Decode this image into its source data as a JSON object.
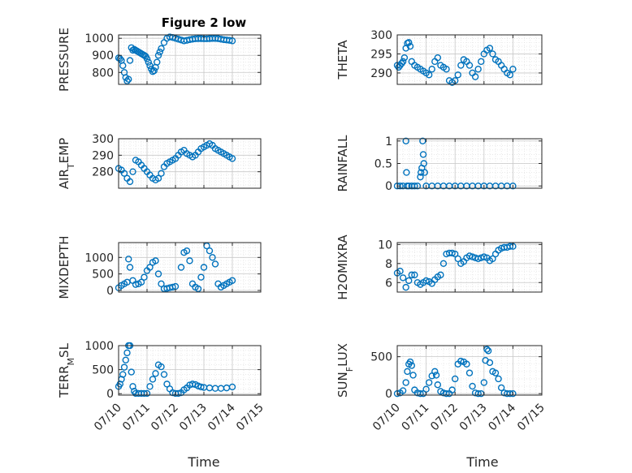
{
  "title": "Figure 2 low",
  "marker_color": "#0072BD",
  "x_tick_labels": [
    "07/10",
    "07/11",
    "07/12",
    "07/13",
    "07/14",
    "07/15"
  ],
  "x_axis_label": "Time",
  "chart_data": [
    {
      "type": "scatter",
      "title": "Figure 2 low",
      "ylabel": "PRESSURE",
      "xlim": [
        0,
        5
      ],
      "ylim": [
        730,
        1020
      ],
      "yticks": [
        800,
        900,
        1000
      ],
      "ytick_labels": [
        "800",
        "900",
        "1000"
      ],
      "grid": true,
      "x": [
        0,
        0.05,
        0.1,
        0.15,
        0.2,
        0.25,
        0.3,
        0.35,
        0.4,
        0.45,
        0.5,
        0.55,
        0.6,
        0.65,
        0.7,
        0.75,
        0.8,
        0.85,
        0.9,
        0.95,
        1,
        1.05,
        1.1,
        1.15,
        1.2,
        1.25,
        1.3,
        1.35,
        1.4,
        1.45,
        1.5,
        1.6,
        1.7,
        1.8,
        1.9,
        2,
        2.1,
        2.2,
        2.3,
        2.4,
        2.5,
        2.6,
        2.7,
        2.8,
        2.9,
        3,
        3.1,
        3.2,
        3.3,
        3.4,
        3.5,
        3.6,
        3.7,
        3.8,
        3.9,
        4
      ],
      "y": [
        885,
        880,
        870,
        840,
        800,
        770,
        750,
        760,
        870,
        945,
        930,
        935,
        930,
        925,
        920,
        915,
        910,
        905,
        900,
        895,
        880,
        860,
        840,
        820,
        805,
        810,
        830,
        860,
        900,
        920,
        940,
        975,
        1000,
        1008,
        1005,
        1000,
        995,
        990,
        985,
        988,
        992,
        995,
        997,
        998,
        998,
        997,
        997,
        998,
        999,
        999,
        998,
        995,
        992,
        990,
        988,
        985
      ]
    },
    {
      "type": "scatter",
      "ylabel": "THETA",
      "xlim": [
        0,
        5
      ],
      "ylim": [
        287,
        300
      ],
      "yticks": [
        290,
        295,
        300
      ],
      "ytick_labels": [
        "290",
        "295",
        "300"
      ],
      "grid": true,
      "x": [
        0,
        0.05,
        0.1,
        0.15,
        0.2,
        0.25,
        0.3,
        0.35,
        0.4,
        0.45,
        0.5,
        0.6,
        0.7,
        0.8,
        0.9,
        1,
        1.1,
        1.2,
        1.3,
        1.4,
        1.5,
        1.6,
        1.7,
        1.8,
        1.9,
        2,
        2.1,
        2.2,
        2.3,
        2.4,
        2.5,
        2.6,
        2.7,
        2.8,
        2.9,
        3,
        3.1,
        3.2,
        3.3,
        3.4,
        3.5,
        3.6,
        3.7,
        3.8,
        3.9,
        4
      ],
      "y": [
        292,
        291.5,
        292,
        292.5,
        293,
        294,
        296.5,
        297.8,
        298,
        297,
        293,
        292,
        291.5,
        291,
        290.5,
        290,
        289.5,
        291,
        293,
        294,
        292,
        291.5,
        291,
        288,
        287.5,
        288,
        289.5,
        292,
        293.5,
        293,
        292,
        290,
        289,
        291,
        293,
        295,
        296,
        296.5,
        295,
        293.5,
        293,
        292,
        291,
        290,
        289.5,
        291
      ]
    },
    {
      "type": "scatter",
      "ylabel": "AIR_TEMP",
      "xlim": [
        0,
        5
      ],
      "ylim": [
        270,
        300
      ],
      "yticks": [
        280,
        290,
        300
      ],
      "ytick_labels": [
        "280",
        "290",
        "300"
      ],
      "grid": true,
      "x": [
        0,
        0.1,
        0.2,
        0.3,
        0.4,
        0.5,
        0.6,
        0.7,
        0.8,
        0.9,
        1,
        1.1,
        1.2,
        1.3,
        1.4,
        1.5,
        1.6,
        1.7,
        1.8,
        1.9,
        2,
        2.1,
        2.2,
        2.3,
        2.4,
        2.5,
        2.6,
        2.7,
        2.8,
        2.9,
        3,
        3.1,
        3.2,
        3.3,
        3.4,
        3.5,
        3.6,
        3.7,
        3.8,
        3.9,
        4
      ],
      "y": [
        282,
        281,
        279,
        276,
        274,
        280,
        287,
        286,
        284,
        282,
        280,
        278,
        276,
        275,
        276,
        279,
        283,
        285,
        286,
        287,
        288,
        290,
        292,
        293,
        291,
        290,
        289,
        290,
        292,
        294,
        295,
        296,
        297,
        296,
        294,
        293,
        292,
        291,
        290,
        289,
        288
      ]
    },
    {
      "type": "scatter",
      "ylabel": "RAINFALL",
      "xlim": [
        0,
        5
      ],
      "ylim": [
        -0.05,
        1.05
      ],
      "yticks": [
        0,
        0.5,
        1
      ],
      "ytick_labels": [
        "0",
        "0.5",
        "1"
      ],
      "grid": true,
      "x": [
        0,
        0.1,
        0.2,
        0.3,
        0.32,
        0.34,
        0.4,
        0.5,
        0.6,
        0.7,
        0.8,
        0.82,
        0.85,
        0.88,
        0.9,
        0.92,
        0.95,
        1,
        1.2,
        1.4,
        1.6,
        1.8,
        2,
        2.2,
        2.4,
        2.6,
        2.8,
        3,
        3.2,
        3.4,
        3.6,
        3.8,
        4
      ],
      "y": [
        0,
        0,
        0,
        1,
        0.3,
        0,
        0,
        0,
        0,
        0,
        0.2,
        0.3,
        0.4,
        1,
        0.7,
        0.5,
        0.3,
        0,
        0,
        0,
        0,
        0,
        0,
        0,
        0,
        0,
        0,
        0,
        0,
        0,
        0,
        0,
        0
      ]
    },
    {
      "type": "scatter",
      "ylabel": "MIXDEPTH",
      "xlim": [
        0,
        5
      ],
      "ylim": [
        -50,
        1450
      ],
      "yticks": [
        0,
        500,
        1000
      ],
      "ytick_labels": [
        "0",
        "500",
        "1000"
      ],
      "grid": true,
      "x": [
        0,
        0.1,
        0.2,
        0.3,
        0.35,
        0.4,
        0.5,
        0.6,
        0.7,
        0.8,
        0.9,
        1,
        1.1,
        1.2,
        1.3,
        1.4,
        1.5,
        1.6,
        1.7,
        1.8,
        1.9,
        2,
        2.2,
        2.3,
        2.4,
        2.5,
        2.6,
        2.7,
        2.8,
        2.9,
        3,
        3.1,
        3.2,
        3.3,
        3.4,
        3.5,
        3.6,
        3.7,
        3.8,
        3.9,
        4
      ],
      "y": [
        80,
        150,
        200,
        250,
        950,
        700,
        300,
        180,
        200,
        250,
        400,
        600,
        700,
        850,
        900,
        500,
        200,
        50,
        60,
        80,
        100,
        120,
        700,
        1150,
        1200,
        900,
        200,
        100,
        50,
        400,
        700,
        1350,
        1200,
        1000,
        800,
        200,
        100,
        150,
        200,
        250,
        300
      ]
    },
    {
      "type": "scatter",
      "ylabel": "H2OMIXRA",
      "xlim": [
        0,
        5
      ],
      "ylim": [
        5,
        10.2
      ],
      "yticks": [
        6,
        8,
        10
      ],
      "ytick_labels": [
        "6",
        "8",
        "10"
      ],
      "grid": true,
      "x": [
        0,
        0.1,
        0.2,
        0.3,
        0.4,
        0.5,
        0.6,
        0.7,
        0.8,
        0.9,
        1,
        1.1,
        1.2,
        1.3,
        1.4,
        1.5,
        1.6,
        1.7,
        1.8,
        1.9,
        2,
        2.1,
        2.2,
        2.3,
        2.4,
        2.5,
        2.6,
        2.7,
        2.8,
        2.9,
        3,
        3.1,
        3.2,
        3.3,
        3.4,
        3.5,
        3.6,
        3.7,
        3.8,
        3.9,
        4
      ],
      "y": [
        7,
        7.2,
        6.5,
        5.5,
        6.2,
        6.8,
        6.8,
        6,
        5.8,
        6,
        6.2,
        6.1,
        5.9,
        6.3,
        6.6,
        6.8,
        8,
        9,
        9.1,
        9.1,
        9,
        8.5,
        8,
        8.2,
        8.6,
        8.8,
        8.7,
        8.6,
        8.5,
        8.6,
        8.7,
        8.6,
        8.3,
        8.5,
        9,
        9.4,
        9.6,
        9.7,
        9.7,
        9.8,
        9.8
      ]
    },
    {
      "type": "scatter",
      "ylabel": "TERR_MSL",
      "xlim": [
        0,
        5
      ],
      "ylim": [
        -30,
        1000
      ],
      "yticks": [
        0,
        500,
        1000
      ],
      "ytick_labels": [
        "0",
        "500",
        "1000"
      ],
      "grid": true,
      "x": [
        0,
        0.05,
        0.1,
        0.15,
        0.2,
        0.25,
        0.3,
        0.35,
        0.4,
        0.45,
        0.5,
        0.55,
        0.6,
        0.7,
        0.8,
        0.9,
        1,
        1.1,
        1.2,
        1.3,
        1.4,
        1.5,
        1.6,
        1.7,
        1.8,
        1.9,
        2,
        2.1,
        2.2,
        2.3,
        2.4,
        2.5,
        2.6,
        2.7,
        2.8,
        2.9,
        3,
        3.2,
        3.4,
        3.6,
        3.8,
        4
      ],
      "y": [
        150,
        200,
        300,
        400,
        550,
        700,
        850,
        1000,
        1000,
        450,
        150,
        50,
        5,
        5,
        5,
        5,
        5,
        150,
        300,
        420,
        600,
        560,
        400,
        200,
        100,
        20,
        5,
        5,
        20,
        80,
        120,
        180,
        200,
        190,
        160,
        140,
        130,
        120,
        110,
        110,
        120,
        140
      ]
    },
    {
      "type": "scatter",
      "ylabel": "SUN_FLUX",
      "xlim": [
        0,
        5
      ],
      "ylim": [
        -20,
        650
      ],
      "yticks": [
        0,
        500
      ],
      "ytick_labels": [
        "0",
        "500"
      ],
      "grid": true,
      "x": [
        0,
        0.1,
        0.2,
        0.3,
        0.35,
        0.4,
        0.45,
        0.5,
        0.55,
        0.6,
        0.7,
        0.8,
        0.9,
        1,
        1.1,
        1.2,
        1.3,
        1.35,
        1.4,
        1.5,
        1.6,
        1.7,
        1.8,
        1.9,
        2,
        2.1,
        2.2,
        2.3,
        2.4,
        2.5,
        2.6,
        2.7,
        2.8,
        2.9,
        3,
        3.05,
        3.1,
        3.15,
        3.2,
        3.3,
        3.4,
        3.5,
        3.6,
        3.7,
        3.8,
        3.9,
        4
      ],
      "y": [
        0,
        10,
        40,
        150,
        300,
        400,
        430,
        380,
        250,
        50,
        10,
        0,
        0,
        60,
        150,
        240,
        300,
        250,
        120,
        30,
        10,
        0,
        0,
        50,
        200,
        400,
        440,
        430,
        400,
        280,
        100,
        10,
        0,
        0,
        150,
        450,
        600,
        580,
        420,
        300,
        280,
        200,
        80,
        10,
        0,
        0,
        0
      ]
    }
  ]
}
